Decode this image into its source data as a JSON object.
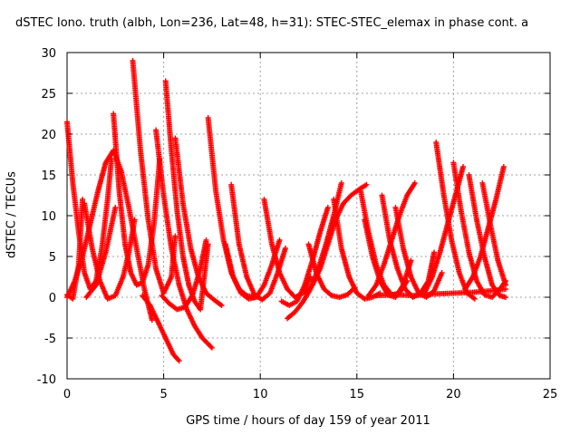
{
  "chart_data": {
    "type": "scatter",
    "title": "dSTEC Iono. truth (albh, Lon=236, Lat=48, h=31): STEC-STEC_elemax in phase cont. a",
    "xlabel": "GPS time / hours of day 159 of year 2011",
    "ylabel": "dSTEC  / TECUs",
    "xlim": [
      0,
      25
    ],
    "ylim": [
      -10,
      30
    ],
    "xticks": [
      "0",
      "5",
      "10",
      "15",
      "20",
      "25"
    ],
    "yticks": [
      "-10",
      "-5",
      "0",
      "5",
      "10",
      "15",
      "20",
      "25",
      "30"
    ],
    "grid": true,
    "marker": "+",
    "color": "#ff0000",
    "series": [
      {
        "x": [
          0.0,
          0.3,
          0.6,
          0.9,
          1.2,
          1.5,
          1.8,
          2.1,
          2.3
        ],
        "y": [
          21.5,
          14,
          8,
          3,
          1,
          2,
          6,
          12,
          17
        ]
      },
      {
        "x": [
          0.0,
          0.4,
          0.8,
          1.2,
          1.6,
          2.0,
          2.4,
          2.8,
          3.2,
          3.6,
          4.0,
          4.4
        ],
        "y": [
          0,
          2,
          5,
          9,
          13,
          16.5,
          18,
          15.5,
          11,
          6,
          1,
          -2.8
        ]
      },
      {
        "x": [
          0.0,
          0.3,
          0.6,
          0.8
        ],
        "y": [
          0.3,
          -0.2,
          4,
          12
        ]
      },
      {
        "x": [
          0.9,
          1.3,
          1.7,
          2.1,
          2.5,
          2.9,
          3.2,
          3.5
        ],
        "y": [
          11.5,
          6,
          2,
          -0.2,
          0.2,
          2.5,
          5.5,
          9.5
        ]
      },
      {
        "x": [
          1.0,
          1.5,
          2.0,
          2.5
        ],
        "y": [
          0,
          1.5,
          5.5,
          11
        ]
      },
      {
        "x": [
          2.4,
          2.7,
          3.0,
          3.3,
          3.6,
          3.9,
          4.2,
          4.5,
          4.8
        ],
        "y": [
          22.5,
          13,
          6.5,
          3,
          1.5,
          1.8,
          4,
          9,
          17
        ]
      },
      {
        "x": [
          3.4,
          3.8,
          4.2,
          4.6,
          5.0,
          5.4,
          5.6
        ],
        "y": [
          29,
          18,
          9.5,
          3.5,
          0.5,
          2.5,
          7.5
        ]
      },
      {
        "x": [
          3.9,
          4.3,
          4.7,
          5.1,
          5.5,
          5.8
        ],
        "y": [
          0.2,
          -1,
          -3,
          -5,
          -7,
          -7.8
        ]
      },
      {
        "x": [
          4.6,
          5.0,
          5.4,
          5.8,
          6.2,
          6.6,
          7.0,
          7.5
        ],
        "y": [
          20.5,
          12.5,
          6,
          1.5,
          -1.5,
          -3.5,
          -5,
          -6.2
        ]
      },
      {
        "x": [
          5.1,
          5.4,
          5.7,
          6.0,
          6.3,
          6.6,
          6.9,
          7.3
        ],
        "y": [
          26.5,
          18,
          10.5,
          5,
          1.5,
          -0.5,
          -1.5,
          6.5
        ]
      },
      {
        "x": [
          4.9,
          5.3,
          5.7,
          6.1,
          6.5,
          6.9,
          7.2
        ],
        "y": [
          0.2,
          -0.8,
          -1.5,
          -1.2,
          0.3,
          3.5,
          7
        ]
      },
      {
        "x": [
          5.6,
          6.0,
          6.4,
          6.8,
          7.2,
          7.6,
          8.0
        ],
        "y": [
          19.5,
          11.5,
          6,
          2.5,
          0.5,
          -0.3,
          -1
        ]
      },
      {
        "x": [
          7.3,
          7.7,
          8.1,
          8.5,
          8.9,
          9.3,
          9.7
        ],
        "y": [
          22,
          13,
          7,
          3,
          1,
          0.2,
          0
        ]
      },
      {
        "x": [
          8.2,
          8.6,
          9.0,
          9.4,
          9.8,
          10.2,
          10.6,
          11.0
        ],
        "y": [
          6.5,
          2.5,
          0.5,
          -0.2,
          0,
          1.5,
          4,
          7
        ]
      },
      {
        "x": [
          8.5,
          8.9,
          9.3,
          9.7,
          10.1,
          10.5,
          10.9,
          11.3
        ],
        "y": [
          13.8,
          6.5,
          2.5,
          0.3,
          -0.3,
          0.5,
          3,
          6
        ]
      },
      {
        "x": [
          10.2,
          10.6,
          11.0,
          11.4,
          11.8,
          12.2,
          12.6
        ],
        "y": [
          12,
          6.5,
          3,
          1,
          0,
          0.5,
          2.5
        ]
      },
      {
        "x": [
          11.1,
          11.5,
          11.9,
          12.3,
          12.7,
          13.1,
          13.5
        ],
        "y": [
          -0.5,
          -1,
          -0.5,
          1.5,
          4.5,
          8,
          11
        ]
      },
      {
        "x": [
          11.4,
          11.8,
          12.2,
          12.6,
          13.0,
          13.4,
          13.8,
          14.2
        ],
        "y": [
          -2.6,
          -1.8,
          -0.6,
          1,
          3.5,
          6.5,
          10,
          14
        ]
      },
      {
        "x": [
          12.5,
          12.9,
          13.3,
          13.7,
          14.1,
          14.5,
          14.9
        ],
        "y": [
          6.5,
          3,
          1,
          0.2,
          0,
          0.3,
          1.2
        ]
      },
      {
        "x": [
          12.3,
          12.7,
          13.1,
          13.5,
          13.9,
          14.3,
          14.7,
          15.1,
          15.5
        ],
        "y": [
          0.5,
          1.5,
          3.5,
          6.5,
          9.5,
          11.5,
          12.5,
          13.2,
          13.8
        ]
      },
      {
        "x": [
          13.8,
          14.2,
          14.6,
          15.0,
          15.4,
          15.8,
          16.2
        ],
        "y": [
          12,
          6,
          2.5,
          0.5,
          -0.2,
          0,
          0.5
        ]
      },
      {
        "x": [
          15.2,
          15.6,
          16.0,
          16.4,
          16.8,
          17.2,
          17.6
        ],
        "y": [
          13,
          8,
          4,
          1.5,
          0.3,
          0.5,
          2
        ]
      },
      {
        "x": [
          15.4,
          15.8,
          16.2,
          16.6,
          17.0,
          17.4,
          17.8
        ],
        "y": [
          9.5,
          5,
          2,
          0.3,
          0,
          1.5,
          4.5
        ]
      },
      {
        "x": [
          15.6,
          16.0,
          16.4,
          16.8,
          17.2,
          17.6,
          18.0
        ],
        "y": [
          0.2,
          1.5,
          4,
          7,
          10,
          12.5,
          14
        ]
      },
      {
        "x": [
          16.3,
          16.7,
          17.1,
          17.5,
          17.9,
          18.3,
          18.7,
          19.0
        ],
        "y": [
          12.5,
          7,
          3.5,
          1,
          0,
          0.5,
          2,
          5.5
        ]
      },
      {
        "x": [
          17.0,
          17.4,
          17.8,
          18.2,
          18.6,
          19.0,
          19.4
        ],
        "y": [
          11,
          6,
          2.5,
          0.5,
          0,
          0.8,
          3
        ]
      },
      {
        "x": [
          19.1,
          19.5,
          19.9,
          20.3,
          20.7,
          21.1
        ],
        "y": [
          19,
          12.5,
          7,
          3,
          0.5,
          -0.2
        ]
      },
      {
        "x": [
          18.5,
          18.9,
          19.3,
          19.7,
          20.1,
          20.5
        ],
        "y": [
          0.5,
          2.5,
          5.5,
          9,
          12.5,
          16
        ]
      },
      {
        "x": [
          20.0,
          20.4,
          20.8,
          21.2,
          21.6,
          22.0,
          22.4,
          22.7
        ],
        "y": [
          16.5,
          10.5,
          5.5,
          2,
          0.3,
          0,
          1,
          2
        ]
      },
      {
        "x": [
          20.8,
          21.2,
          21.6,
          22.0,
          22.4,
          22.7
        ],
        "y": [
          15,
          9.5,
          5,
          1.5,
          0.2,
          0
        ]
      },
      {
        "x": [
          20.6,
          21.0,
          21.4,
          21.8,
          22.2,
          22.6
        ],
        "y": [
          1,
          2.5,
          5,
          8.5,
          12,
          16
        ]
      },
      {
        "x": [
          21.5,
          21.9,
          22.3,
          22.7
        ],
        "y": [
          14,
          9,
          4.5,
          1.5
        ]
      },
      {
        "x": [
          16.0,
          17.0,
          18.0,
          19.0,
          20.0,
          21.0,
          22.0,
          22.7
        ],
        "y": [
          0.2,
          0.3,
          0.2,
          0.4,
          0.5,
          0.6,
          0.8,
          1
        ]
      }
    ]
  }
}
